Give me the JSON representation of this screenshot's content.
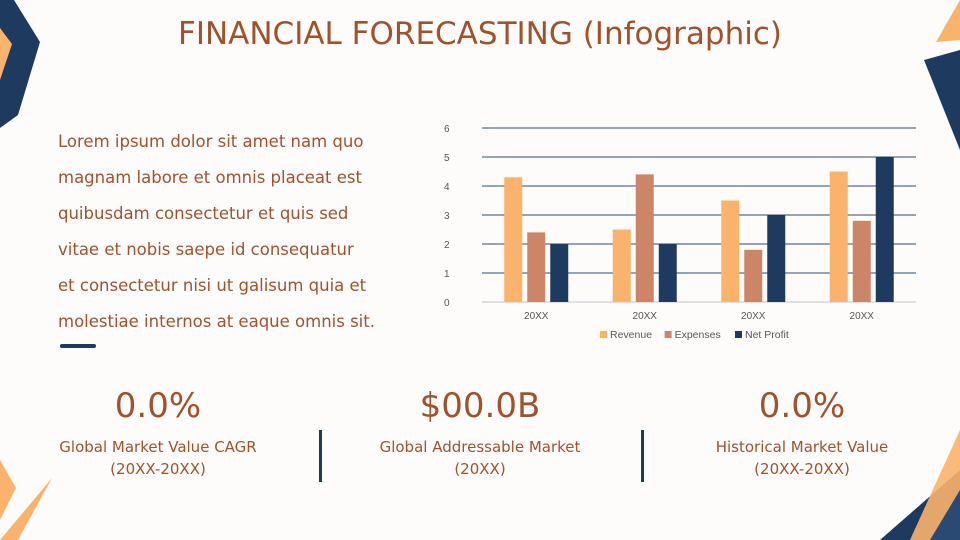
{
  "title": "FINANCIAL FORECASTING (Infographic)",
  "body_lines": [
    "Lorem ipsum dolor sit amet nam quo",
    "magnam labore et omnis placeat est",
    "quibusdam consectetur et quis sed",
    "vitae et nobis saepe id consequatur",
    "et consectetur nisi ut galisum quia et",
    "molestiae internos at eaque omnis sit."
  ],
  "stats": [
    {
      "value": "0.0%",
      "label_line1": "Global Market Value CAGR",
      "label_line2": "(20XX-20XX)"
    },
    {
      "value": "$00.0B",
      "label_line1": "Global Addressable Market",
      "label_line2": "(20XX)"
    },
    {
      "value": "0.0%",
      "label_line1": "Historical Market Value",
      "label_line2": "(20XX-20XX)"
    }
  ],
  "colors": {
    "accent": "#a0522d",
    "navy": "#1f3a5f",
    "peach": "#f9b36c",
    "terracotta": "#cd8568"
  },
  "chart_data": {
    "type": "bar",
    "categories": [
      "20XX",
      "20XX",
      "20XX",
      "20XX"
    ],
    "series": [
      {
        "name": "Revenue",
        "color": "#f9b36c",
        "values": [
          4.3,
          2.5,
          3.5,
          4.5
        ]
      },
      {
        "name": "Expenses",
        "color": "#cd8568",
        "values": [
          2.4,
          4.4,
          1.8,
          2.8
        ]
      },
      {
        "name": "Net Profit",
        "color": "#1f3a5f",
        "values": [
          2.0,
          2.0,
          3.0,
          5.0
        ]
      }
    ],
    "ylim": [
      0,
      6
    ],
    "yticks": [
      0,
      1,
      2,
      3,
      4,
      5,
      6
    ],
    "grid": true,
    "legend": "bottom"
  }
}
